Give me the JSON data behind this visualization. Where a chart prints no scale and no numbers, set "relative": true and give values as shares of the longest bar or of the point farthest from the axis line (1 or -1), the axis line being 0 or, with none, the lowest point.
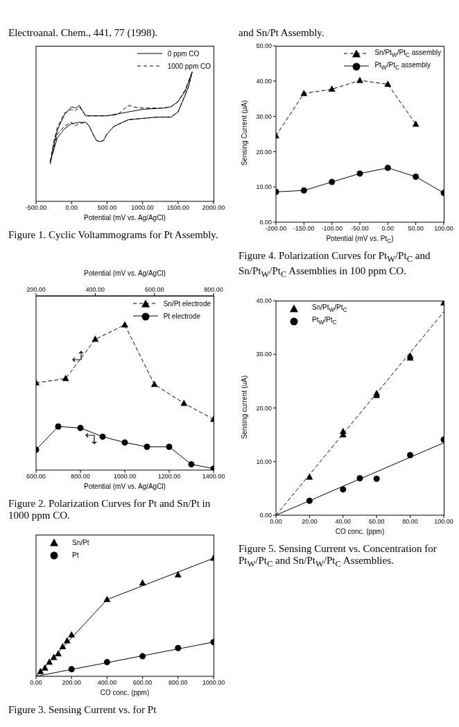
{
  "chart_data": [
    {
      "type": "line",
      "title": "Figure 1.  Cyclic Voltammograms for Pt Assembly.",
      "annotations": [
        "Electroanal. Chem., 441, 77 (1998)."
      ],
      "xlabel": "Potential (mV vs. Ag/AgCl)",
      "relative": true,
      "xlim": [
        -500,
        2000
      ],
      "xticks": [
        {
          "value": -500,
          "label": "-500.00"
        },
        {
          "value": 0,
          "label": "0.00"
        },
        {
          "value": 500,
          "label": "500.00"
        },
        {
          "value": 1000,
          "label": "1000.00"
        },
        {
          "value": 1500,
          "label": "1500.00"
        },
        {
          "value": 2000,
          "label": "2000.00"
        }
      ],
      "legend": "top right",
      "series": [
        {
          "name": "0 ppm CO",
          "color": "#000000",
          "line_style": "solid",
          "x": [
            -300,
            -250,
            -200,
            -100,
            0,
            60,
            110,
            200,
            500,
            1000,
            1300,
            1400,
            1500,
            1600,
            1700,
            1650,
            1600,
            1500,
            1400,
            1200,
            1000,
            800,
            600,
            500,
            450,
            400,
            350,
            300,
            250,
            200,
            100,
            0,
            -100,
            -200,
            -300
          ],
          "values": [
            0.29,
            0.44,
            0.55,
            0.67,
            0.73,
            0.72,
            0.74,
            0.66,
            0.66,
            0.71,
            0.72,
            0.73,
            0.77,
            0.85,
            1,
            0.89,
            0.82,
            0.69,
            0.65,
            0.65,
            0.64,
            0.63,
            0.58,
            0.52,
            0.47,
            0.46,
            0.47,
            0.52,
            0.58,
            0.61,
            0.61,
            0.6,
            0.56,
            0.49,
            0.31
          ]
        },
        {
          "name": "1000 ppm CO",
          "color": "#000000",
          "line_style": "dashed",
          "x": [
            -300,
            -250,
            -200,
            -100,
            0,
            60,
            110,
            200,
            500,
            650,
            800,
            950,
            1300,
            1400,
            1500,
            1600,
            1700,
            1650,
            1600,
            1500,
            1400,
            1200,
            1000,
            800,
            600,
            500,
            450,
            400,
            350,
            300,
            250,
            200,
            100,
            50,
            0,
            -100,
            -200,
            -300
          ],
          "values": [
            0.31,
            0.46,
            0.57,
            0.68,
            0.71,
            0.7,
            0.73,
            0.66,
            0.66,
            0.67,
            0.74,
            0.72,
            0.72,
            0.73,
            0.77,
            0.86,
            1,
            0.89,
            0.82,
            0.69,
            0.65,
            0.65,
            0.64,
            0.63,
            0.58,
            0.52,
            0.47,
            0.46,
            0.47,
            0.52,
            0.58,
            0.61,
            0.6,
            0.58,
            0.61,
            0.58,
            0.52,
            0.3
          ]
        }
      ]
    },
    {
      "type": "line",
      "title": "Figure 2.  Polarization Curves for Pt and Sn/Pt in 1000 ppm CO.",
      "xlabel": "Potential (mV vs. Ag/AgCl)",
      "x2label": "Potential (mV vs. Ag/AgCl)",
      "relative": true,
      "xlim": [
        600,
        1400
      ],
      "xticks": [
        {
          "value": 600,
          "label": "600.00"
        },
        {
          "value": 800,
          "label": "800.00"
        },
        {
          "value": 1000,
          "label": "1000.00"
        },
        {
          "value": 1200,
          "label": "1200.00"
        },
        {
          "value": 1400,
          "label": "1400.00"
        }
      ],
      "x2lim": [
        200,
        800
      ],
      "x2ticks": [
        {
          "value": 200,
          "label": "200.00"
        },
        {
          "value": 400,
          "label": "400.00"
        },
        {
          "value": 600,
          "label": "600.00"
        },
        {
          "value": 800,
          "label": "800.00"
        }
      ],
      "legend": "top right",
      "series": [
        {
          "name": "Sn/Pt electrode",
          "color": "#000000",
          "axis": "x2",
          "marker": "triangle",
          "line_style": "dashed",
          "x": [
            200,
            300,
            400,
            500,
            600,
            700,
            800
          ],
          "values": [
            0.6,
            0.63,
            0.9,
            1,
            0.59,
            0.46,
            0.35
          ]
        },
        {
          "name": "Pt electrode",
          "color": "#000000",
          "marker": "circle",
          "line_style": "solid",
          "x": [
            600,
            700,
            800,
            900,
            1000,
            1100,
            1200,
            1300,
            1400
          ],
          "values": [
            0.14,
            0.3,
            0.29,
            0.23,
            0.19,
            0.16,
            0.16,
            0.04,
            0.01
          ]
        }
      ]
    },
    {
      "type": "scatter",
      "title": "Figure 3.  Sensing Current vs. for Pt",
      "xlabel": "CO conc. (ppm)",
      "relative": true,
      "xlim": [
        0,
        1000
      ],
      "xticks": [
        {
          "value": 0,
          "label": "0.00"
        },
        {
          "value": 200,
          "label": "200.00"
        },
        {
          "value": 400,
          "label": "400.00"
        },
        {
          "value": 600,
          "label": "600.00"
        },
        {
          "value": 800,
          "label": "800.00"
        },
        {
          "value": 1000,
          "label": "1000.00"
        }
      ],
      "legend": "top left",
      "series": [
        {
          "name": "Sn/Pt",
          "color": "#000000",
          "marker": "triangle",
          "x": [
            25,
            50,
            75,
            100,
            125,
            150,
            175,
            200,
            400,
            600,
            800,
            1000
          ],
          "values": [
            0.04,
            0.07,
            0.12,
            0.16,
            0.19,
            0.25,
            0.3,
            0.35,
            0.65,
            0.79,
            0.86,
            1
          ]
        },
        {
          "name": "Pt",
          "color": "#000000",
          "marker": "circle",
          "x": [
            200,
            400,
            600,
            800,
            1000
          ],
          "values": [
            0.06,
            0.12,
            0.17,
            0.24,
            0.29
          ]
        },
        {
          "type": "line",
          "color": "#000000",
          "line_style": "solid",
          "x": [
            0,
            400,
            1000
          ],
          "values": [
            0,
            0.65,
            1
          ]
        },
        {
          "type": "line",
          "color": "#000000",
          "line_style": "solid",
          "x": [
            0,
            1000
          ],
          "values": [
            0,
            0.29
          ]
        }
      ]
    },
    {
      "type": "line",
      "title": "Figure 4.  Polarization Curves for Pt$_{W}$/Pt$_{C}$ and Sn/Pt$_{W}$/Pt$_{C}$ Assemblies in 100 ppm CO.",
      "annotations": [
        "and Sn/Pt Assembly."
      ],
      "xlabel": "Potential (mV vs. Pt$_{C}$)",
      "ylabel": "Sensing Current (µA)",
      "xlim": [
        -200,
        100
      ],
      "xticks": [
        {
          "value": -200,
          "label": "-200.00"
        },
        {
          "value": -150,
          "label": "-150.00"
        },
        {
          "value": -100,
          "label": "-100.00"
        },
        {
          "value": -50,
          "label": "-50.00"
        },
        {
          "value": 0,
          "label": "0.00"
        },
        {
          "value": 50,
          "label": "50.00"
        },
        {
          "value": 100,
          "label": "100.00"
        }
      ],
      "ylim": [
        0,
        50
      ],
      "yticks": [
        {
          "value": 0,
          "label": "0.00"
        },
        {
          "value": 10,
          "label": "10.00"
        },
        {
          "value": 20,
          "label": "20.00"
        },
        {
          "value": 30,
          "label": "30.00"
        },
        {
          "value": 40,
          "label": "40.00"
        },
        {
          "value": 50,
          "label": "50.00"
        }
      ],
      "legend": "top right",
      "series": [
        {
          "name": "Sn/Pt$_{W}$/Pt$_{C}$ assembly",
          "color": "#000000",
          "marker": "triangle",
          "line_style": "dashed",
          "x": [
            -200,
            -150,
            -100,
            -50,
            0,
            50
          ],
          "values": [
            24.5,
            36.5,
            37.7,
            40.2,
            39.1,
            27.8
          ]
        },
        {
          "name": "Pt$_{W}$/Pt$_{C}$ assembly",
          "color": "#000000",
          "marker": "circle",
          "line_style": "solid",
          "x": [
            -200,
            -150,
            -100,
            -50,
            0,
            50,
            100
          ],
          "values": [
            8.6,
            9.0,
            11.4,
            13.8,
            15.4,
            12.9,
            8.3
          ]
        }
      ]
    },
    {
      "type": "scatter",
      "title": "Figure 5.  Sensing Current vs. Concentration for Pt$_{W}$/Pt$_{C}$ and Sn/Pt$_{W}$/Pt$_{C}$ Assemblies.",
      "xlabel": "CO conc. (ppm)",
      "ylabel": "Sensing current (uA)",
      "xlim": [
        0,
        100
      ],
      "xticks": [
        {
          "value": 0,
          "label": "0.00"
        },
        {
          "value": 20,
          "label": "20.00"
        },
        {
          "value": 40,
          "label": "40.00"
        },
        {
          "value": 60,
          "label": "60.00"
        },
        {
          "value": 80,
          "label": "80.00"
        },
        {
          "value": 100,
          "label": "100.00"
        }
      ],
      "ylim": [
        0,
        40
      ],
      "yticks": [
        {
          "value": 0,
          "label": "0.00"
        },
        {
          "value": 10,
          "label": "10.00"
        },
        {
          "value": 20,
          "label": "20.00"
        },
        {
          "value": 30,
          "label": "30.00"
        },
        {
          "value": 40,
          "label": "40.00"
        }
      ],
      "legend": "top left",
      "series": [
        {
          "name": "Sn/Pt$_{W}$/Pt$_{C}$",
          "color": "#000000",
          "marker": "triangle",
          "x": [
            20,
            40,
            40,
            60,
            60,
            80,
            80,
            100
          ],
          "values": [
            7.1,
            15.6,
            15.0,
            22.7,
            22.3,
            29.7,
            29.3,
            39.6
          ]
        },
        {
          "name": "Pt$_{W}$/Pt$_{C}$",
          "color": "#000000",
          "marker": "circle",
          "x": [
            20,
            40,
            50,
            60,
            80,
            100
          ],
          "values": [
            2.7,
            4.8,
            6.9,
            6.8,
            11.2,
            14.1
          ]
        },
        {
          "type": "line",
          "color": "#000000",
          "line_style": "dashed",
          "x": [
            0,
            100
          ],
          "values": [
            0,
            37.9
          ]
        },
        {
          "type": "line",
          "color": "#000000",
          "line_style": "solid",
          "x": [
            0,
            100
          ],
          "values": [
            0,
            13.5
          ]
        }
      ]
    }
  ]
}
